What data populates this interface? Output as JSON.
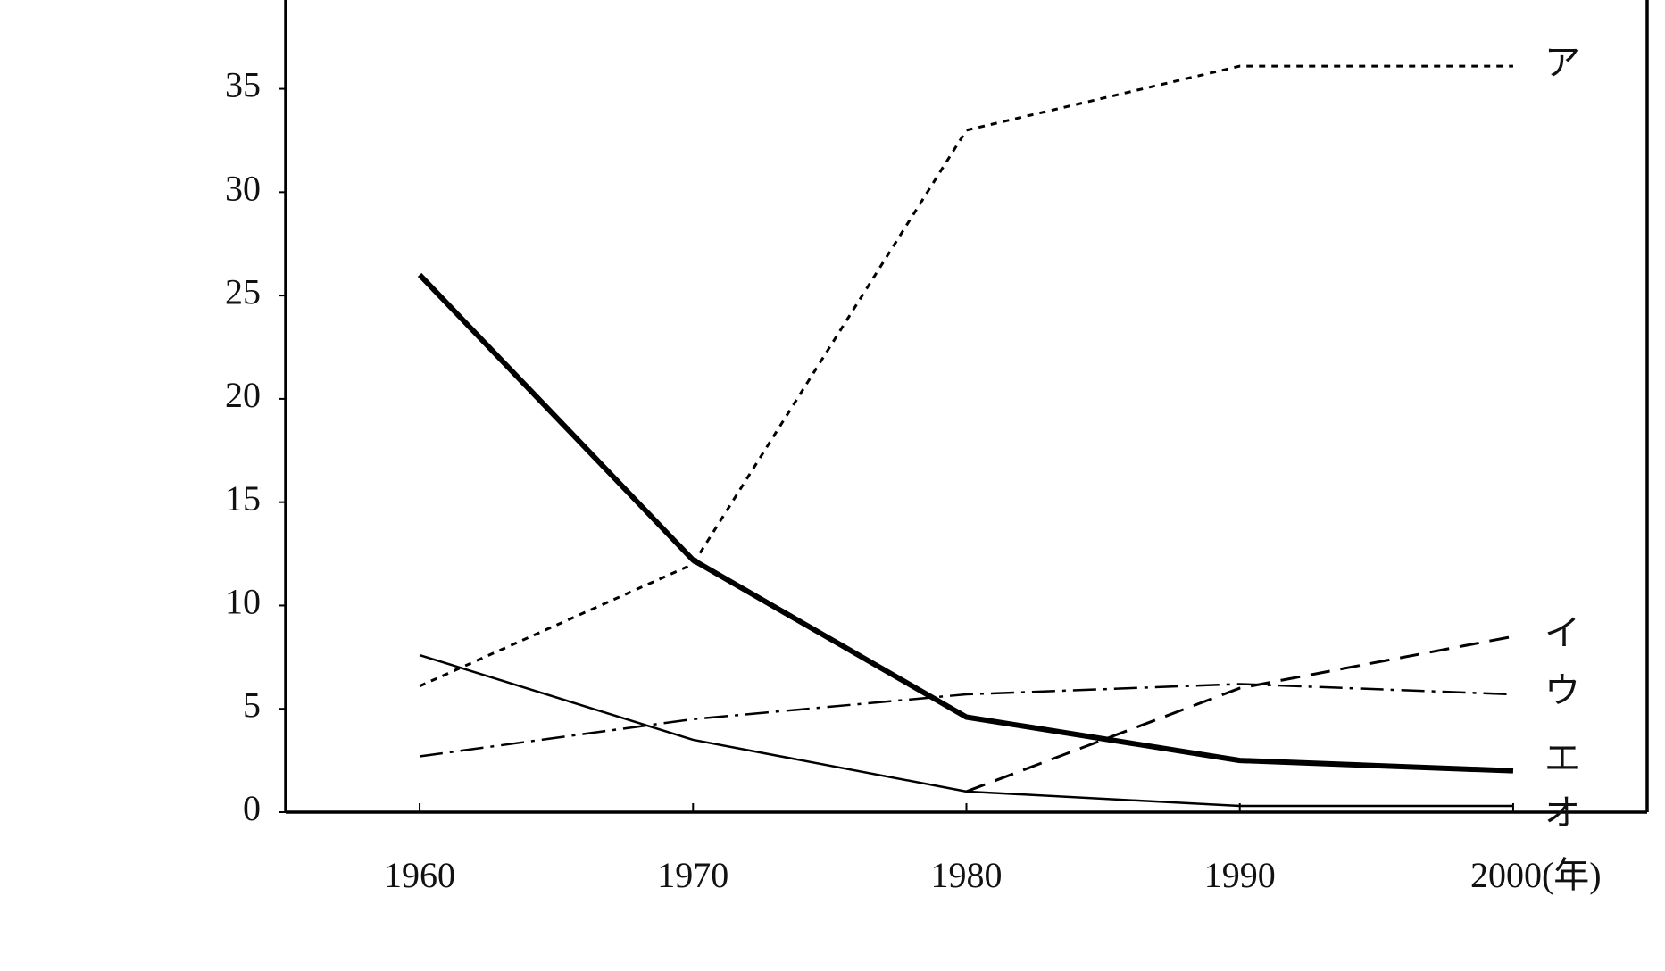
{
  "chart_data": {
    "type": "line",
    "x": [
      1960,
      1970,
      1980,
      1990,
      2000
    ],
    "xlim": [
      1955.1,
      2004.9
    ],
    "xticks": [
      1960,
      1970,
      1980,
      1990,
      {
        "value": 2000,
        "label": "2000(年)"
      }
    ],
    "ylim": [
      0,
      39.3
    ],
    "yticks": [
      0,
      5,
      10,
      15,
      20,
      25,
      30,
      35
    ],
    "series": [
      {
        "name": "ア",
        "color": "#000000",
        "line_style": "dotted",
        "line_width": 3,
        "values": [
          6.1,
          12,
          33,
          36.1,
          36.1
        ]
      },
      {
        "name": "イ",
        "color": "#000000",
        "line_style": "dashed",
        "line_width": 3,
        "values": [
          null,
          null,
          1,
          6,
          8.5
        ]
      },
      {
        "name": "ウ",
        "color": "#000000",
        "line_style": "dashdot",
        "line_width": 2.5,
        "values": [
          2.7,
          4.5,
          5.7,
          6.2,
          5.7
        ]
      },
      {
        "name": "エ",
        "color": "#000000",
        "line_style": "solid",
        "line_width": 6,
        "values": [
          26,
          12.2,
          4.6,
          2.5,
          2.0
        ]
      },
      {
        "name": "オ",
        "color": "#000000",
        "line_style": "solid",
        "line_width": 2.5,
        "values": [
          7.6,
          3.5,
          1.0,
          0.3,
          0.3
        ]
      }
    ]
  }
}
